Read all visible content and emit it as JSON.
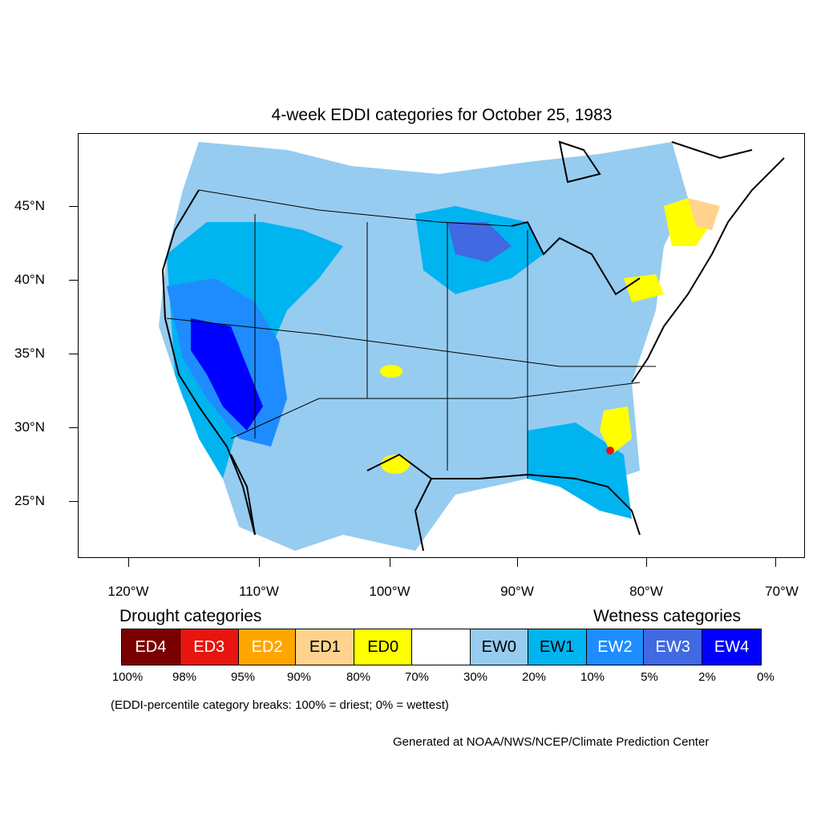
{
  "title": "4-week EDDI categories for October 25, 1983",
  "lat_labels": [
    "45°N",
    "40°N",
    "35°N",
    "30°N",
    "25°N"
  ],
  "lon_labels": [
    "120°W",
    "110°W",
    "100°W",
    "90°W",
    "80°W",
    "70°W"
  ],
  "drought_title": "Drought categories",
  "wetness_title": "Wetness categories",
  "legend": [
    {
      "label": "ED4",
      "color": "#7a0000",
      "text_color": "#ffffff"
    },
    {
      "label": "ED3",
      "color": "#e8140f",
      "text_color": "#ffffff"
    },
    {
      "label": "ED2",
      "color": "#ffa500",
      "text_color": "#ffffff"
    },
    {
      "label": "ED1",
      "color": "#ffd38e",
      "text_color": "#000000"
    },
    {
      "label": "ED0",
      "color": "#ffff00",
      "text_color": "#000000"
    },
    {
      "label": "",
      "color": "#ffffff",
      "text_color": "#000000"
    },
    {
      "label": "EW0",
      "color": "#96ccf0",
      "text_color": "#000000"
    },
    {
      "label": "EW1",
      "color": "#00b4f0",
      "text_color": "#000000"
    },
    {
      "label": "EW2",
      "color": "#1e8cff",
      "text_color": "#ffffff"
    },
    {
      "label": "EW3",
      "color": "#4169e1",
      "text_color": "#ffffff"
    },
    {
      "label": "EW4",
      "color": "#0000ff",
      "text_color": "#ffffff"
    }
  ],
  "breaks": [
    "100%",
    "98%",
    "95%",
    "90%",
    "80%",
    "70%",
    "30%",
    "20%",
    "10%",
    "5%",
    "2%",
    "0%"
  ],
  "note": "(EDDI-percentile category breaks: 100% = driest; 0% = wettest)",
  "credit": "Generated at NOAA/NWS/NCEP/Climate Prediction Center"
}
